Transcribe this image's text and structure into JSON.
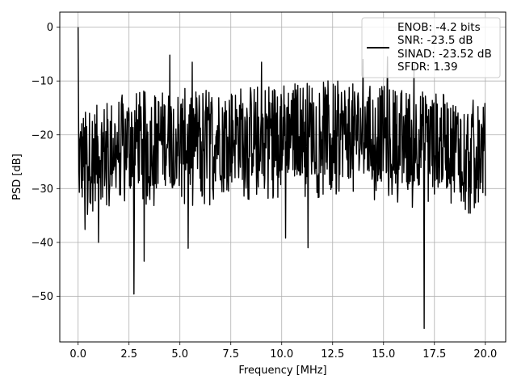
{
  "chart_data": {
    "type": "line",
    "xlabel": "Frequency [MHz]",
    "ylabel": "PSD [dB]",
    "xlim": [
      -0.9,
      21.0
    ],
    "ylim": [
      -58.5,
      2.8
    ],
    "xticks": [
      0.0,
      2.5,
      5.0,
      7.5,
      10.0,
      12.5,
      15.0,
      17.5,
      20.0
    ],
    "xtick_labels": [
      "0.0",
      "2.5",
      "5.0",
      "7.5",
      "10.0",
      "12.5",
      "15.0",
      "17.5",
      "20.0"
    ],
    "yticks": [
      0,
      -10,
      -20,
      -30,
      -40,
      -50
    ],
    "ytick_labels": [
      "0",
      "−10",
      "−20",
      "−30",
      "−40",
      "−50"
    ],
    "grid": true,
    "legend": {
      "placement": "top-right",
      "entries": [
        "ENOB: -4.2 bits",
        "SNR: -23.5 dB",
        "SINAD: -23.52 dB",
        "SFDR: 1.39"
      ]
    },
    "series": [
      {
        "color": "#000000",
        "x_range": [
          0,
          20
        ],
        "n_points": 1000,
        "peak": {
          "x": 0.0,
          "y": 0.0
        },
        "envelope_points": [
          [
            0.0,
            -18
          ],
          [
            2.5,
            -14
          ],
          [
            5.0,
            -13.5
          ],
          [
            7.5,
            -13
          ],
          [
            10.0,
            -12
          ],
          [
            12.5,
            -12
          ],
          [
            15.0,
            -13
          ],
          [
            17.5,
            -14
          ],
          [
            20.0,
            -16
          ]
        ],
        "upper_peaks": [
          [
            4.5,
            -5.2
          ],
          [
            5.6,
            -6.5
          ],
          [
            9.0,
            -6.5
          ],
          [
            14.0,
            -6.0
          ],
          [
            15.2,
            -5.5
          ],
          [
            16.5,
            -7.0
          ]
        ],
        "lower_spikes": [
          [
            0.35,
            -37.6
          ],
          [
            1.0,
            -40.0
          ],
          [
            2.75,
            -49.6
          ],
          [
            3.25,
            -43.5
          ],
          [
            5.4,
            -41.1
          ],
          [
            10.2,
            -39.2
          ],
          [
            11.3,
            -41.0
          ],
          [
            17.0,
            -56.0
          ]
        ]
      }
    ]
  }
}
